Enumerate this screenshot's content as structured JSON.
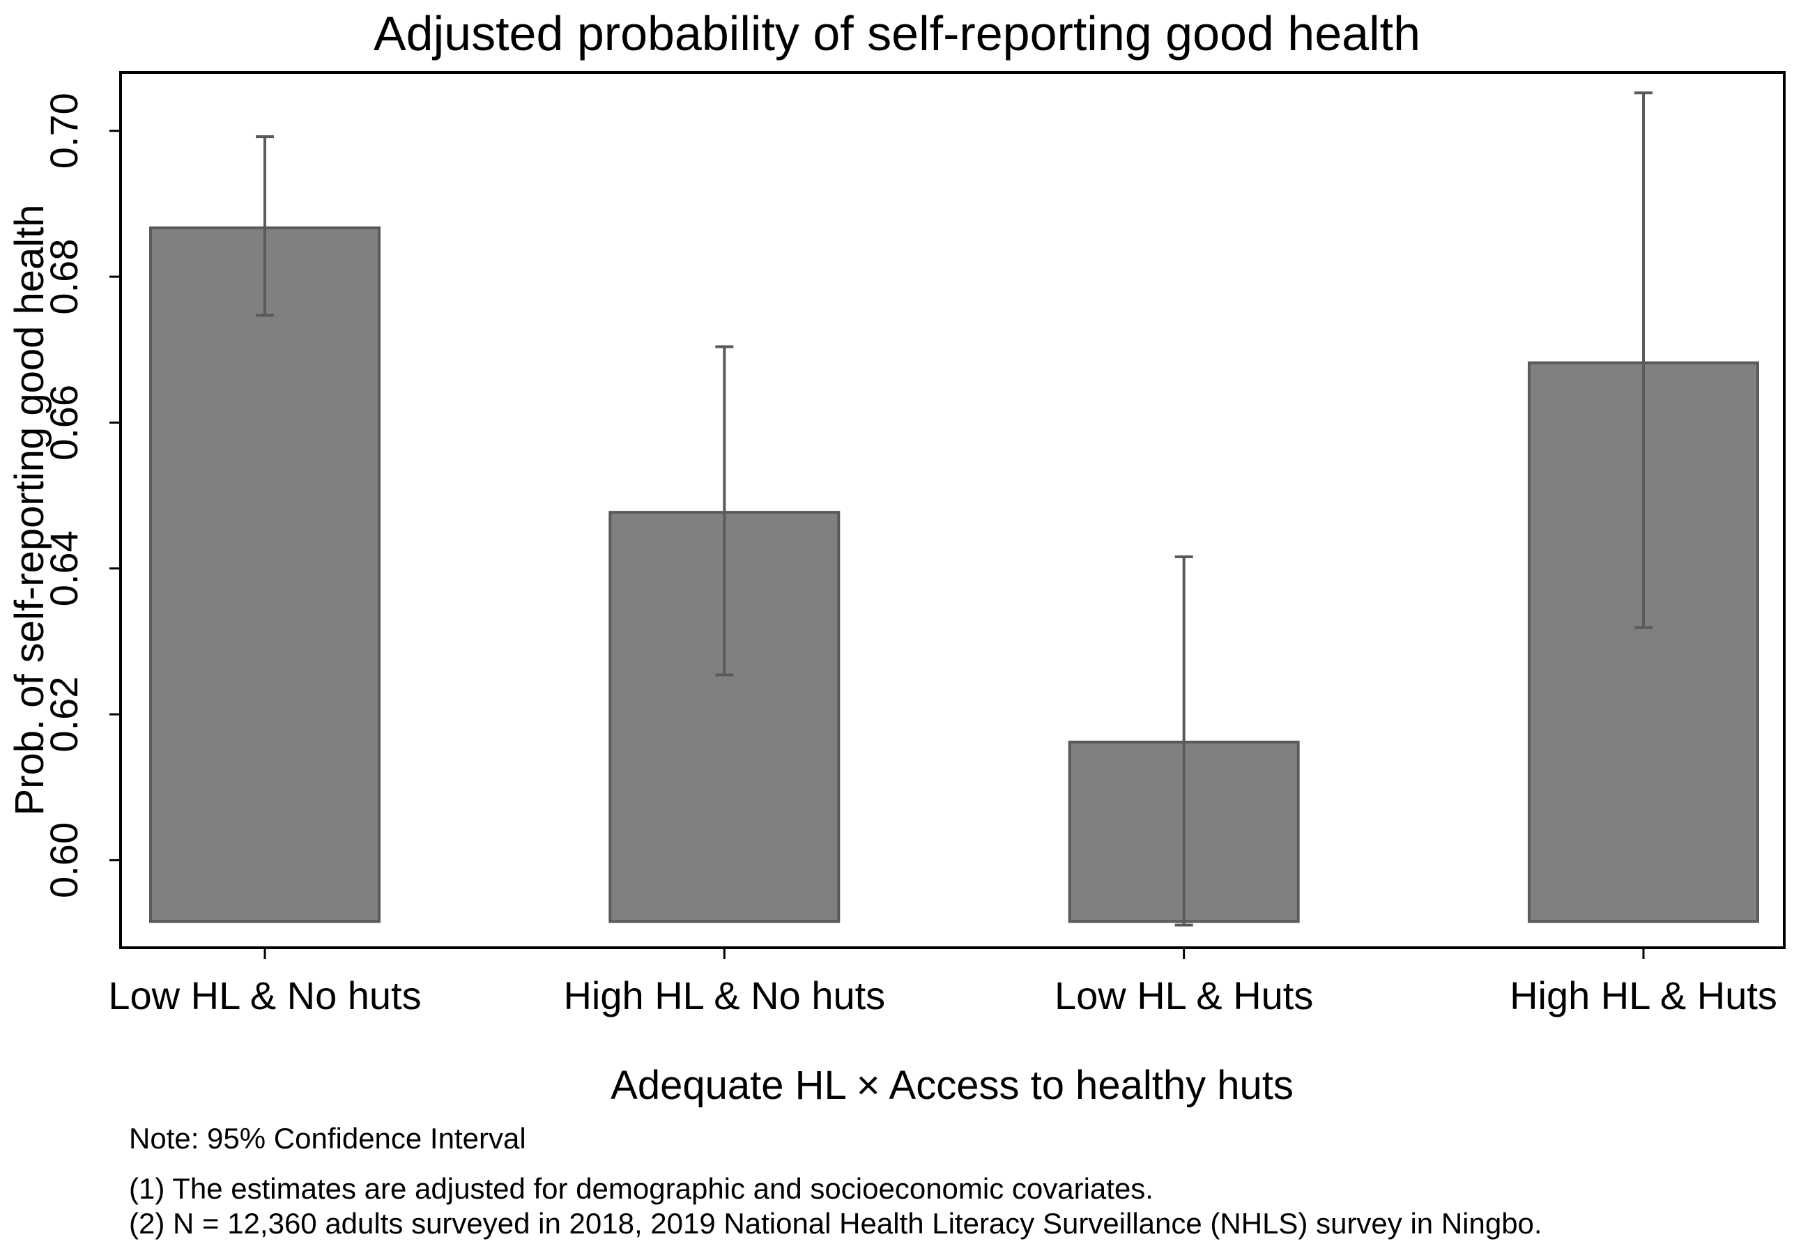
{
  "chart_data": {
    "type": "bar",
    "title": "Adjusted probability of self-reporting good health",
    "xlabel": "Adequate HL × Access to healthy huts",
    "ylabel": "Prob. of self-reporting good health",
    "categories": [
      "Low HL & No huts",
      "High HL & No huts",
      "Low HL & Huts",
      "High HL & Huts"
    ],
    "values": [
      0.6867,
      0.6477,
      0.6162,
      0.6682
    ],
    "ci_low": [
      0.6747,
      0.6254,
      0.5911,
      0.6319
    ],
    "ci_high": [
      0.6992,
      0.6704,
      0.6416,
      0.7052
    ],
    "bar_base": 0.5916,
    "ylim": [
      0.588,
      0.708
    ],
    "yticks": [
      0.6,
      0.62,
      0.64,
      0.66,
      0.68,
      0.7
    ],
    "ytick_labels": [
      "0.60",
      "0.62",
      "0.64",
      "0.66",
      "0.68",
      "0.70"
    ],
    "grid": false,
    "colors": {
      "bar_fill": "#808080",
      "bar_edge": "#5a5a5a",
      "error_bar": "#5a5a5a",
      "axis": "#000000"
    }
  },
  "notes": {
    "line1": "Note: 95% Confidence Interval",
    "line2": "(1) The estimates are adjusted for demographic and socioeconomic covariates.",
    "line3": "(2) N = 12,360 adults surveyed in 2018, 2019 National Health Literacy Surveillance (NHLS) survey in Ningbo."
  }
}
